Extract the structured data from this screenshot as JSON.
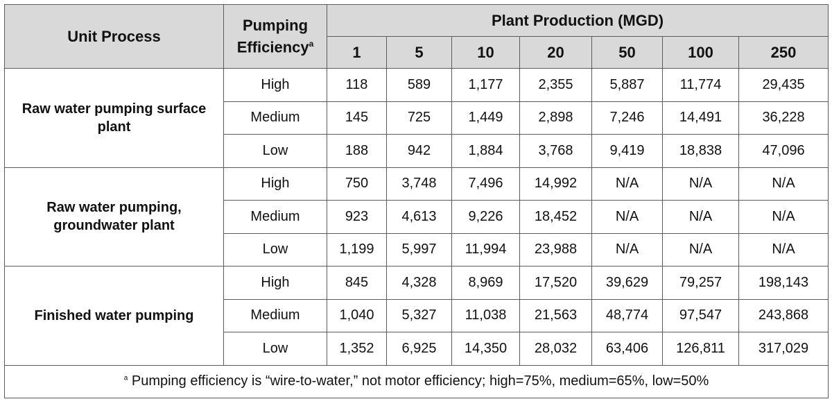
{
  "table": {
    "col_unit_process": "Unit Process",
    "col_pumping_efficiency": "Pumping Efficiency",
    "col_pumping_efficiency_sup": "a",
    "col_plant_production": "Plant Production (MGD)",
    "production_columns": [
      "1",
      "5",
      "10",
      "20",
      "50",
      "100",
      "250"
    ],
    "groups": [
      {
        "label": "Raw water pumping surface plant",
        "rows": [
          {
            "efficiency": "High",
            "values": [
              "118",
              "589",
              "1,177",
              "2,355",
              "5,887",
              "11,774",
              "29,435"
            ]
          },
          {
            "efficiency": "Medium",
            "values": [
              "145",
              "725",
              "1,449",
              "2,898",
              "7,246",
              "14,491",
              "36,228"
            ]
          },
          {
            "efficiency": "Low",
            "values": [
              "188",
              "942",
              "1,884",
              "3,768",
              "9,419",
              "18,838",
              "47,096"
            ]
          }
        ]
      },
      {
        "label": "Raw water pumping, groundwater plant",
        "rows": [
          {
            "efficiency": "High",
            "values": [
              "750",
              "3,748",
              "7,496",
              "14,992",
              "N/A",
              "N/A",
              "N/A"
            ]
          },
          {
            "efficiency": "Medium",
            "values": [
              "923",
              "4,613",
              "9,226",
              "18,452",
              "N/A",
              "N/A",
              "N/A"
            ]
          },
          {
            "efficiency": "Low",
            "values": [
              "1,199",
              "5,997",
              "11,994",
              "23,988",
              "N/A",
              "N/A",
              "N/A"
            ]
          }
        ]
      },
      {
        "label": "Finished water pumping",
        "rows": [
          {
            "efficiency": "High",
            "values": [
              "845",
              "4,328",
              "8,969",
              "17,520",
              "39,629",
              "79,257",
              "198,143"
            ]
          },
          {
            "efficiency": "Medium",
            "values": [
              "1,040",
              "5,327",
              "11,038",
              "21,563",
              "48,774",
              "97,547",
              "243,868"
            ]
          },
          {
            "efficiency": "Low",
            "values": [
              "1,352",
              "6,925",
              "14,350",
              "28,032",
              "63,406",
              "126,811",
              "317,029"
            ]
          }
        ]
      }
    ],
    "footnote_marker": "a",
    "footnote_text": " Pumping efficiency is “wire-to-water,” not motor efficiency; high=75%, medium=65%, low=50%"
  }
}
